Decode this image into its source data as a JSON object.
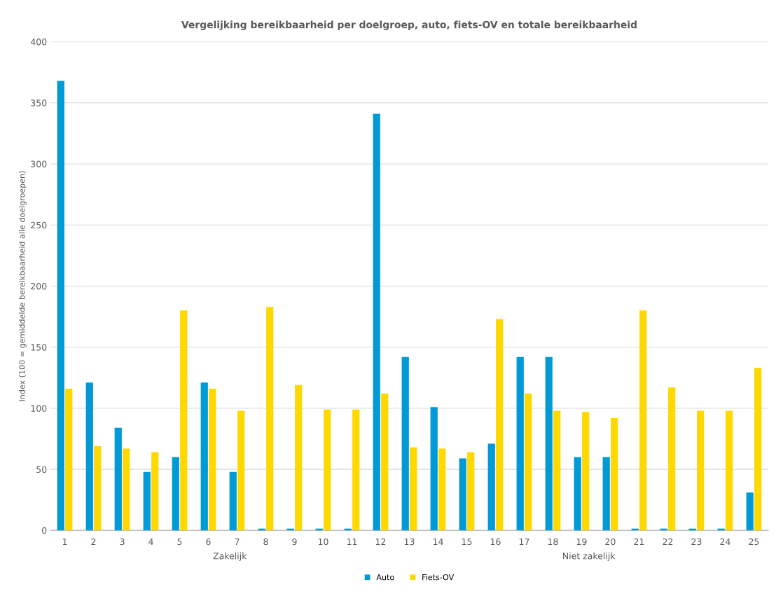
{
  "chart_data": {
    "type": "bar",
    "title": "Vergelijking bereikbaarheid per doelgroep, auto, fiets-OV en totale bereikbaarheid",
    "ylabel": "Index (100 = gemiddelde bereikbaarheid alle doelgroepen)",
    "categories": [
      "1",
      "2",
      "3",
      "4",
      "5",
      "6",
      "7",
      "8",
      "9",
      "10",
      "11",
      "12",
      "13",
      "14",
      "15",
      "16",
      "17",
      "18",
      "19",
      "20",
      "21",
      "22",
      "23",
      "24",
      "25"
    ],
    "series": [
      {
        "name": "Auto",
        "color": "#009ad6",
        "values": [
          368,
          121,
          84,
          48,
          60,
          121,
          48,
          1.5,
          1.5,
          1.5,
          1.5,
          341,
          142,
          101,
          59,
          71,
          142,
          142,
          60,
          60,
          1.5,
          1.5,
          1.5,
          1.5,
          31
        ]
      },
      {
        "name": "Fiets-OV",
        "color": "#ffd800",
        "values": [
          116,
          69,
          67,
          64,
          180,
          116,
          98,
          183,
          119,
          99,
          99,
          112,
          68,
          67,
          64,
          173,
          112,
          98,
          97,
          92,
          180,
          117,
          98,
          98,
          133
        ]
      }
    ],
    "ylim": [
      0,
      400
    ],
    "yticks": [
      0,
      50,
      100,
      150,
      200,
      250,
      300,
      350,
      400
    ],
    "grid": "y",
    "legend": "bottom",
    "annotations": [
      "Zakelijk",
      "Niet zakelijk"
    ]
  }
}
